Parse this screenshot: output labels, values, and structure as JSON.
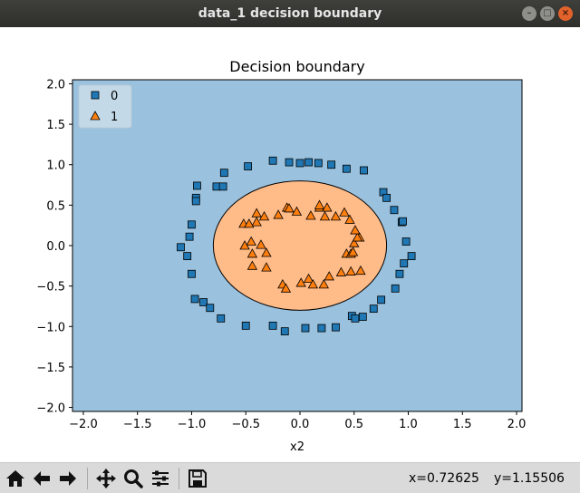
{
  "window": {
    "title": "data_1 decision boundary",
    "buttons": {
      "minimize": "minimize-icon",
      "maximize": "maximize-icon",
      "close": "close-icon"
    }
  },
  "chart_data": {
    "type": "scatter",
    "title": "Decision boundary",
    "xlabel": "x2",
    "ylabel": "",
    "xlim": [
      -2.1,
      2.05
    ],
    "ylim": [
      -2.05,
      2.05
    ],
    "xticks": [
      -2.0,
      -1.5,
      -1.0,
      -0.5,
      0.0,
      0.5,
      1.0,
      1.5,
      2.0
    ],
    "xtick_labels": [
      "−2.0",
      "−1.5",
      "−1.0",
      "−0.5",
      "0.0",
      "0.5",
      "1.0",
      "1.5",
      "2.0"
    ],
    "yticks": [
      2.0,
      1.5,
      1.0,
      0.5,
      0.0,
      -0.5,
      -1.0,
      -1.5,
      -2.0
    ],
    "ytick_labels": [
      "2.0",
      "1.5",
      "1.0",
      "0.5",
      "0.0",
      "−0.5",
      "−1.0",
      "−1.5",
      "−2.0"
    ],
    "legend": {
      "position": "top-left",
      "entries": [
        {
          "label": "0",
          "marker": "square",
          "color": "#1f77b4"
        },
        {
          "label": "1",
          "marker": "triangle",
          "color": "#ff7f0e"
        }
      ]
    },
    "background_color": "#9ac1dd",
    "region_class1": {
      "shape": "ellipse",
      "center": [
        0.0,
        0.0
      ],
      "rx": 0.8,
      "ry": 0.8,
      "color": "#ffbb88"
    },
    "series": [
      {
        "name": "0",
        "marker": "square",
        "color": "#1f77b4",
        "points": [
          [
            -0.25,
            1.05
          ],
          [
            -0.1,
            1.03
          ],
          [
            0.0,
            1.02
          ],
          [
            0.08,
            1.03
          ],
          [
            0.17,
            1.02
          ],
          [
            0.29,
            1.0
          ],
          [
            0.43,
            0.95
          ],
          [
            0.59,
            0.93
          ],
          [
            -0.48,
            0.98
          ],
          [
            -0.7,
            0.9
          ],
          [
            -0.77,
            0.73
          ],
          [
            -0.71,
            0.73
          ],
          [
            -0.95,
            0.74
          ],
          [
            -0.96,
            0.59
          ],
          [
            -0.96,
            0.55
          ],
          [
            -1.0,
            0.26
          ],
          [
            -1.02,
            0.11
          ],
          [
            -1.1,
            -0.02
          ],
          [
            -1.04,
            -0.13
          ],
          [
            -1.0,
            -0.35
          ],
          [
            -0.97,
            -0.66
          ],
          [
            -0.89,
            -0.7
          ],
          [
            -0.83,
            -0.77
          ],
          [
            -0.73,
            -0.9
          ],
          [
            -0.5,
            -0.99
          ],
          [
            -0.25,
            -0.99
          ],
          [
            -0.14,
            -1.06
          ],
          [
            0.05,
            -1.02
          ],
          [
            0.2,
            -1.02
          ],
          [
            0.33,
            -1.01
          ],
          [
            0.48,
            -0.87
          ],
          [
            0.51,
            -0.9
          ],
          [
            0.58,
            -0.88
          ],
          [
            0.68,
            -0.78
          ],
          [
            0.75,
            -0.67
          ],
          [
            0.88,
            -0.53
          ],
          [
            0.92,
            -0.35
          ],
          [
            0.96,
            -0.22
          ],
          [
            1.03,
            -0.13
          ],
          [
            0.98,
            0.05
          ],
          [
            0.94,
            0.29
          ],
          [
            0.95,
            0.3
          ],
          [
            0.87,
            0.44
          ],
          [
            0.77,
            0.66
          ],
          [
            0.8,
            0.59
          ]
        ]
      },
      {
        "name": "1",
        "marker": "triangle",
        "color": "#ff7f0e",
        "points": [
          [
            -0.2,
            0.38
          ],
          [
            -0.12,
            0.47
          ],
          [
            -0.1,
            0.46
          ],
          [
            0.18,
            0.47
          ],
          [
            0.18,
            0.5
          ],
          [
            0.25,
            0.47
          ],
          [
            0.41,
            0.41
          ],
          [
            0.46,
            0.32
          ],
          [
            -0.33,
            0.36
          ],
          [
            -0.4,
            0.29
          ],
          [
            -0.52,
            0.27
          ],
          [
            -0.47,
            0.27
          ],
          [
            -0.45,
            0.05
          ],
          [
            -0.51,
            0.0
          ],
          [
            -0.36,
            0.01
          ],
          [
            -0.44,
            -0.1
          ],
          [
            -0.31,
            -0.09
          ],
          [
            -0.44,
            -0.25
          ],
          [
            -0.31,
            -0.27
          ],
          [
            -0.16,
            -0.48
          ],
          [
            -0.13,
            -0.53
          ],
          [
            0.01,
            -0.46
          ],
          [
            0.08,
            -0.41
          ],
          [
            0.12,
            -0.48
          ],
          [
            0.22,
            -0.48
          ],
          [
            0.27,
            -0.38
          ],
          [
            0.38,
            -0.33
          ],
          [
            0.47,
            -0.32
          ],
          [
            0.56,
            -0.31
          ],
          [
            0.43,
            -0.1
          ],
          [
            0.47,
            -0.1
          ],
          [
            0.49,
            -0.08
          ],
          [
            0.5,
            0.03
          ],
          [
            0.55,
            0.1
          ],
          [
            0.53,
            0.1
          ],
          [
            0.51,
            0.19
          ],
          [
            0.33,
            0.36
          ],
          [
            0.1,
            0.37
          ],
          [
            0.23,
            0.36
          ],
          [
            -0.03,
            0.42
          ],
          [
            -0.4,
            0.4
          ]
        ]
      }
    ]
  },
  "toolbar": {
    "buttons": [
      {
        "name": "home-icon"
      },
      {
        "name": "back-arrow-icon"
      },
      {
        "name": "forward-arrow-icon"
      },
      {
        "name": "pan-move-icon"
      },
      {
        "name": "zoom-magnifier-icon"
      },
      {
        "name": "configure-subplots-icon"
      },
      {
        "name": "save-floppy-icon"
      }
    ],
    "coord_x": "x=0.72625",
    "coord_y": "y=1.15506"
  }
}
